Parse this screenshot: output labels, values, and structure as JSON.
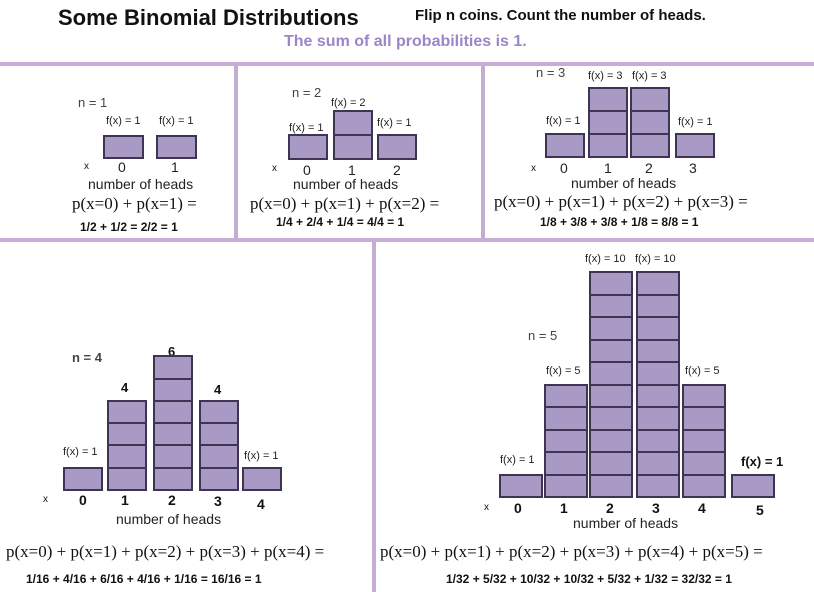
{
  "header": {
    "title": "Some Binomial Distributions",
    "subtitle": "Flip n coins.  Count the number of heads.",
    "sum_note": "The sum of all probabilities is 1."
  },
  "colors": {
    "bar_fill": "#a89ac4",
    "bar_stroke": "#3d3552",
    "divider": "#c4aed4",
    "note": "#9a86c8"
  },
  "panels": [
    {
      "n_label": "n = 1",
      "x_marker": "x",
      "axis_label": "number of heads",
      "ticks": [
        "0",
        "1"
      ],
      "fx_labels": [
        "f(x) = 1",
        "f(x) = 1"
      ],
      "equation": "p(x=0) + p(x=1) =",
      "sum": "1/2 + 1/2 = 2/2 = 1"
    },
    {
      "n_label": "n = 2",
      "x_marker": "x",
      "axis_label": "number of heads",
      "ticks": [
        "0",
        "1",
        "2"
      ],
      "fx_labels": [
        "f(x) = 1",
        "f(x) = 2",
        "f(x) = 1"
      ],
      "equation": "p(x=0) + p(x=1) + p(x=2) =",
      "sum": "1/4 + 2/4 + 1/4 = 4/4 = 1"
    },
    {
      "n_label": "n = 3",
      "x_marker": "x",
      "axis_label": "number of heads",
      "ticks": [
        "0",
        "1",
        "2",
        "3"
      ],
      "fx_labels": [
        "f(x) = 1",
        "f(x) = 3",
        "f(x) = 3",
        "f(x) = 1"
      ],
      "equation": "p(x=0) + p(x=1) + p(x=2) + p(x=3) =",
      "sum": "1/8 + 3/8 + 3/8 + 1/8 = 8/8 = 1"
    },
    {
      "n_label": "n = 4",
      "x_marker": "x",
      "axis_label": "number of heads",
      "ticks": [
        "0",
        "1",
        "2",
        "3",
        "4"
      ],
      "fx_labels": [
        "f(x) = 1",
        "4",
        "6",
        "4",
        "f(x) = 1"
      ],
      "equation": "p(x=0) + p(x=1) + p(x=2) + p(x=3) + p(x=4) =",
      "sum": "1/16 + 4/16 + 6/16 + 4/16 + 1/16 = 16/16 = 1"
    },
    {
      "n_label": "n = 5",
      "x_marker": "x",
      "axis_label": "number of heads",
      "ticks": [
        "0",
        "1",
        "2",
        "3",
        "4",
        "5"
      ],
      "fx_labels": [
        "f(x) = 1",
        "f(x) = 5",
        "f(x) = 10",
        "f(x) = 10",
        "f(x) = 5",
        "f(x) = 1"
      ],
      "equation": "p(x=0) + p(x=1) + p(x=2) + p(x=3) + p(x=4) + p(x=5) =",
      "sum": "1/32 + 5/32 + 10/32 + 10/32 + 5/32 + 1/32 = 32/32 = 1"
    }
  ],
  "chart_data": [
    {
      "type": "bar",
      "categories": [
        "0",
        "1"
      ],
      "values": [
        1,
        1
      ]
    },
    {
      "type": "bar",
      "categories": [
        "0",
        "1",
        "2"
      ],
      "values": [
        1,
        2,
        1
      ]
    },
    {
      "type": "bar",
      "categories": [
        "0",
        "1",
        "2",
        "3"
      ],
      "values": [
        1,
        3,
        3,
        1
      ]
    },
    {
      "type": "bar",
      "categories": [
        "0",
        "1",
        "2",
        "3",
        "4"
      ],
      "values": [
        1,
        4,
        6,
        4,
        1
      ]
    },
    {
      "type": "bar",
      "categories": [
        "0",
        "1",
        "2",
        "3",
        "4",
        "5"
      ],
      "values": [
        1,
        5,
        10,
        10,
        5,
        1
      ]
    }
  ]
}
